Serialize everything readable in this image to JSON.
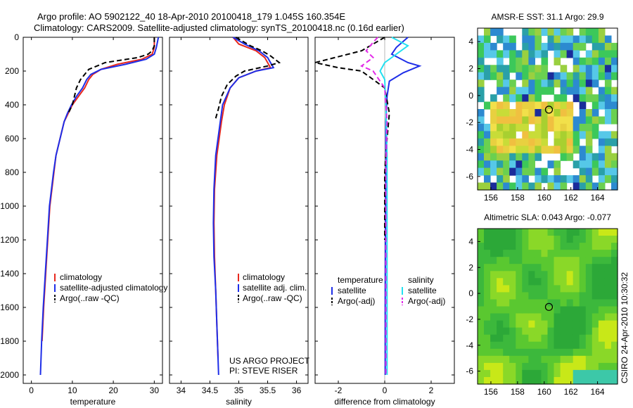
{
  "title": {
    "line1": "Argo profile: AO 5902122_40 18-Apr-2010 20100418_179 1.045S 160.354E",
    "line2": "Climatology: CARS2009. Satellite-adjusted climatology: synTS_20100418.nc (0.16d earlier)"
  },
  "side_label": "CSIRO 24-Apr-2010 10:30:32",
  "colors": {
    "clim": "#e8281e",
    "sat": "#1e2ee8",
    "argo": "#000000",
    "sal_sat": "#22e0f0",
    "sal_argo": "#e22ae8"
  },
  "chart_data": [
    {
      "type": "line",
      "xlabel": "temperature",
      "ylabel": "",
      "xlim": [
        -2,
        32
      ],
      "ylim": [
        2050,
        0
      ],
      "x_ticks": [
        "0",
        "10",
        "20",
        "30"
      ],
      "y_ticks": [
        "0",
        "200",
        "400",
        "600",
        "800",
        "1000",
        "1200",
        "1400",
        "1600",
        "1800",
        "2000"
      ],
      "legend": [
        "climatology",
        "satellite-adjusted climatology",
        "Argo(..raw -QC)"
      ],
      "series": [
        {
          "name": "climatology",
          "color": "clim",
          "dash": "",
          "points": [
            [
              30,
              0
            ],
            [
              30,
              60
            ],
            [
              29.5,
              100
            ],
            [
              27,
              130
            ],
            [
              21,
              160
            ],
            [
              17,
              190
            ],
            [
              15,
              220
            ],
            [
              14,
              250
            ],
            [
              13,
              300
            ],
            [
              11.5,
              350
            ],
            [
              10,
              400
            ],
            [
              9,
              450
            ],
            [
              8,
              500
            ],
            [
              7,
              600
            ],
            [
              6,
              700
            ],
            [
              5.5,
              800
            ],
            [
              5,
              900
            ],
            [
              4.5,
              1000
            ],
            [
              4,
              1200
            ],
            [
              3.5,
              1400
            ],
            [
              3,
              1600
            ],
            [
              2.6,
              1800
            ]
          ]
        },
        {
          "name": "satellite-adjusted climatology",
          "color": "sat",
          "dash": "",
          "points": [
            [
              31,
              0
            ],
            [
              30.5,
              60
            ],
            [
              30,
              100
            ],
            [
              28,
              130
            ],
            [
              23,
              160
            ],
            [
              17,
              190
            ],
            [
              14.5,
              220
            ],
            [
              13.5,
              250
            ],
            [
              12.5,
              300
            ],
            [
              11,
              350
            ],
            [
              9.8,
              400
            ],
            [
              8.8,
              450
            ],
            [
              8,
              500
            ],
            [
              7,
              600
            ],
            [
              6,
              700
            ],
            [
              5.4,
              800
            ],
            [
              4.9,
              900
            ],
            [
              4.4,
              1000
            ],
            [
              3.9,
              1200
            ],
            [
              3.4,
              1400
            ],
            [
              2.9,
              1600
            ],
            [
              2.5,
              1800
            ],
            [
              2.2,
              2000
            ]
          ]
        },
        {
          "name": "Argo(..raw -QC)",
          "color": "argo",
          "dash": "7,4",
          "points": [
            [
              30,
              0
            ],
            [
              30,
              50
            ],
            [
              29.5,
              80
            ],
            [
              28.5,
              100
            ],
            [
              26,
              120
            ],
            [
              18,
              150
            ],
            [
              14,
              190
            ],
            [
              13,
              220
            ],
            [
              12,
              250
            ],
            [
              11,
              300
            ],
            [
              10,
              400
            ],
            [
              9,
              450
            ]
          ]
        }
      ]
    },
    {
      "type": "line",
      "xlabel": "salinity",
      "ylabel": "",
      "xlim": [
        33.8,
        36.2
      ],
      "ylim": [
        2050,
        0
      ],
      "x_ticks": [
        "34",
        "34.5",
        "35",
        "35.5",
        "36"
      ],
      "legend": [
        "climatology",
        "satellite adj. clim.",
        "Argo(..raw -QC)"
      ],
      "series": [
        {
          "name": "climatology",
          "color": "clim",
          "dash": "",
          "points": [
            [
              34.9,
              0
            ],
            [
              35.0,
              40
            ],
            [
              35.3,
              80
            ],
            [
              35.45,
              120
            ],
            [
              35.5,
              150
            ],
            [
              35.55,
              180
            ],
            [
              35.3,
              200
            ],
            [
              35.0,
              240
            ],
            [
              34.85,
              300
            ],
            [
              34.75,
              400
            ],
            [
              34.7,
              500
            ],
            [
              34.62,
              700
            ],
            [
              34.58,
              900
            ],
            [
              34.57,
              1100
            ],
            [
              34.58,
              1300
            ],
            [
              34.6,
              1500
            ],
            [
              34.62,
              1700
            ],
            [
              34.64,
              1900
            ]
          ]
        },
        {
          "name": "satellite adj. clim.",
          "color": "sat",
          "dash": "",
          "points": [
            [
              34.9,
              0
            ],
            [
              35.1,
              40
            ],
            [
              35.35,
              80
            ],
            [
              35.5,
              120
            ],
            [
              35.55,
              150
            ],
            [
              35.6,
              180
            ],
            [
              35.3,
              200
            ],
            [
              35.0,
              240
            ],
            [
              34.85,
              300
            ],
            [
              34.72,
              400
            ],
            [
              34.68,
              500
            ],
            [
              34.6,
              700
            ],
            [
              34.57,
              900
            ],
            [
              34.56,
              1100
            ],
            [
              34.57,
              1300
            ],
            [
              34.6,
              1500
            ],
            [
              34.62,
              1700
            ],
            [
              34.64,
              1900
            ],
            [
              34.65,
              2000
            ]
          ]
        },
        {
          "name": "Argo(..raw -QC)",
          "color": "argo",
          "dash": "7,4",
          "points": [
            [
              34.95,
              0
            ],
            [
              35.2,
              50
            ],
            [
              35.4,
              80
            ],
            [
              35.55,
              110
            ],
            [
              35.7,
              150
            ],
            [
              35.5,
              170
            ],
            [
              35.1,
              200
            ],
            [
              34.95,
              230
            ],
            [
              34.8,
              280
            ],
            [
              34.7,
              350
            ],
            [
              34.65,
              420
            ],
            [
              34.6,
              480
            ]
          ]
        }
      ],
      "footnote": [
        "US ARGO PROJECT",
        "PI: STEVE RISER"
      ]
    },
    {
      "type": "line",
      "xlabel": "difference from climatology",
      "ylabel": "",
      "xlim": [
        -3,
        3
      ],
      "ylim": [
        2050,
        0
      ],
      "x_ticks": [
        "-2",
        "0",
        "2"
      ],
      "legend": [
        "temperature",
        "satellite",
        "Argo(-adj)",
        "salinity",
        "satellite",
        "Argo(-adj)"
      ],
      "series": [
        {
          "name": "temperature satellite",
          "color": "sat",
          "dash": "",
          "points": [
            [
              1.0,
              0
            ],
            [
              0.5,
              60
            ],
            [
              0.3,
              100
            ],
            [
              1.0,
              150
            ],
            [
              1.5,
              170
            ],
            [
              0.8,
              210
            ],
            [
              0.2,
              260
            ],
            [
              0.1,
              350
            ],
            [
              0.05,
              500
            ],
            [
              0.05,
              800
            ],
            [
              0.03,
              1200
            ],
            [
              0.02,
              1600
            ],
            [
              0.02,
              2000
            ]
          ]
        },
        {
          "name": "temperature Argo(-adj)",
          "color": "argo",
          "dash": "7,4",
          "points": [
            [
              0,
              0
            ],
            [
              -0.5,
              40
            ],
            [
              -1,
              80
            ],
            [
              -3,
              150
            ],
            [
              -2,
              180
            ],
            [
              -1,
              200
            ],
            [
              -0.5,
              250
            ],
            [
              0,
              300
            ],
            [
              0.2,
              450
            ],
            [
              0.1,
              600
            ],
            [
              0,
              800
            ],
            [
              0,
              1200
            ]
          ]
        },
        {
          "name": "salinity satellite",
          "color": "sal_sat",
          "dash": "",
          "points": [
            [
              0.3,
              0
            ],
            [
              1.0,
              50
            ],
            [
              0.5,
              100
            ],
            [
              0,
              150
            ],
            [
              -0.2,
              200
            ],
            [
              0,
              250
            ],
            [
              0.05,
              400
            ],
            [
              0.1,
              700
            ],
            [
              0.1,
              1000
            ],
            [
              0.1,
              1500
            ],
            [
              0.1,
              2000
            ]
          ]
        },
        {
          "name": "salinity Argo(-adj)",
          "color": "sal_argo",
          "dash": "7,4",
          "points": [
            [
              -0.3,
              0
            ],
            [
              -0.5,
              30
            ],
            [
              -0.8,
              80
            ],
            [
              -0.5,
              120
            ],
            [
              -1.0,
              170
            ],
            [
              -0.5,
              200
            ],
            [
              0,
              300
            ],
            [
              0.1,
              500
            ],
            [
              0.05,
              800
            ],
            [
              0.05,
              1200
            ],
            [
              0.05,
              1600
            ],
            [
              0.05,
              2000
            ]
          ]
        }
      ]
    },
    {
      "type": "heatmap",
      "title": "AMSR-E SST: 31.1 Argo: 29.9",
      "xlabel": "",
      "ylabel": "",
      "xlim": [
        155,
        165.5
      ],
      "ylim": [
        -7,
        5
      ],
      "x_ticks": [
        "156",
        "158",
        "160",
        "162",
        "164"
      ],
      "y_ticks": [
        "4",
        "2",
        "0",
        "-2",
        "-4",
        "-6"
      ],
      "argo_position": [
        160.354,
        -1.045
      ]
    },
    {
      "type": "heatmap",
      "title": "Altimetric SLA: 0.043 Argo: -0.077",
      "xlabel": "",
      "ylabel": "",
      "xlim": [
        155,
        165.5
      ],
      "ylim": [
        -7,
        5
      ],
      "x_ticks": [
        "156",
        "158",
        "160",
        "162",
        "164"
      ],
      "y_ticks": [
        "4",
        "2",
        "0",
        "-2",
        "-4",
        "-6"
      ],
      "argo_position": [
        160.354,
        -1.045
      ]
    }
  ]
}
